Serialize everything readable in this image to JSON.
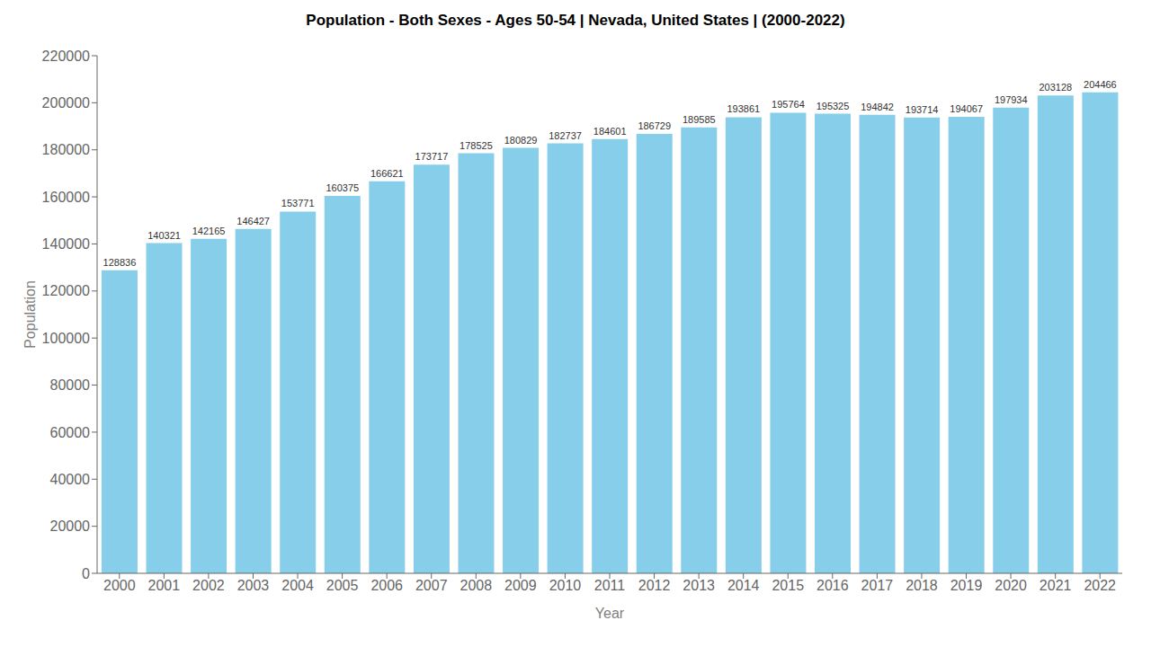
{
  "chart_data": {
    "type": "bar",
    "title": "Population - Both Sexes - Ages 50-54 | Nevada, United States |  (2000-2022)",
    "xlabel": "Year",
    "ylabel": "Population",
    "categories": [
      "2000",
      "2001",
      "2002",
      "2003",
      "2004",
      "2005",
      "2006",
      "2007",
      "2008",
      "2009",
      "2010",
      "2011",
      "2012",
      "2013",
      "2014",
      "2015",
      "2016",
      "2017",
      "2018",
      "2019",
      "2020",
      "2021",
      "2022"
    ],
    "values": [
      128836,
      140321,
      142165,
      146427,
      153771,
      160375,
      166621,
      173717,
      178525,
      180829,
      182737,
      184601,
      186729,
      189585,
      193861,
      195764,
      195325,
      194842,
      193714,
      194067,
      197934,
      203128,
      204466
    ],
    "color": "#87ceeb",
    "ylim": [
      0,
      220000
    ],
    "yticks": [
      0,
      20000,
      40000,
      60000,
      80000,
      100000,
      120000,
      140000,
      160000,
      180000,
      200000,
      220000
    ],
    "grid": false,
    "data_labels": true
  }
}
